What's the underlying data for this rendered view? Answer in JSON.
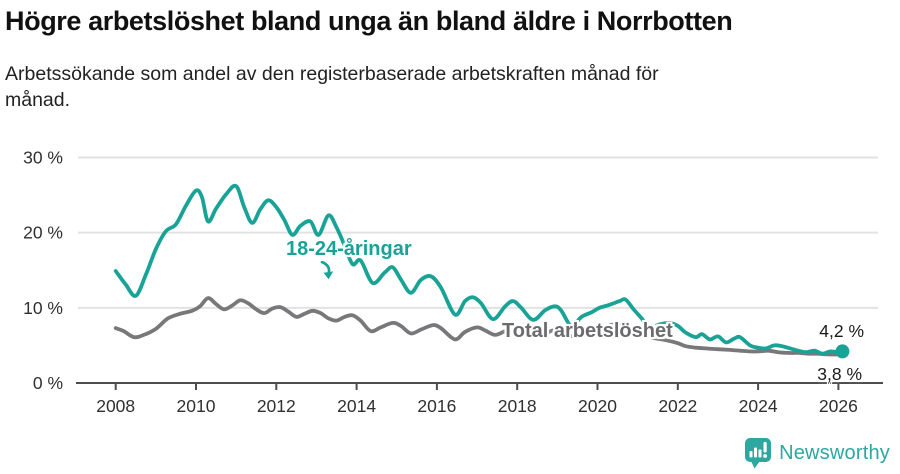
{
  "header": {
    "title": "Högre arbetslöshet bland unga än bland äldre i Norrbotten",
    "subtitle": "Arbetssökande som andel av den registerbaserade arbetskraften månad för\nmånad."
  },
  "annotations": {
    "youth_label": "18-24-åringar",
    "total_label": "Total arbetslöshet",
    "end_value_youth": "4,2 %",
    "end_value_total": "3,8 %"
  },
  "footer": {
    "brand": "Newsworthy"
  },
  "colors": {
    "youth_line": "#18a396",
    "total_line": "#78787b",
    "total_label_text": "#6b6b6e",
    "grid": "#e2e2e2",
    "axis": "#4d4d4d",
    "tick_text": "#303030",
    "brand_teal": "#2da7a0"
  },
  "chart_data": {
    "type": "line",
    "title": "Högre arbetslöshet bland unga än bland äldre i Norrbotten",
    "subtitle": "Arbetssökande som andel av den registerbaserade arbetskraften månad för månad.",
    "xlabel": "",
    "ylabel": "",
    "unit": "%",
    "grid": true,
    "legend_position": "inline-labels",
    "x_axis": {
      "range": [
        2007.9,
        2027.1
      ],
      "tick_values": [
        2008,
        2010,
        2012,
        2014,
        2016,
        2018,
        2020,
        2022,
        2024,
        2026
      ],
      "tick_labels": [
        "2008",
        "2010",
        "2012",
        "2014",
        "2016",
        "2018",
        "2020",
        "2022",
        "2024",
        "2026"
      ]
    },
    "y_axis": {
      "range": [
        0,
        30
      ],
      "tick_values": [
        0,
        10,
        20,
        30
      ],
      "tick_labels": [
        "0 %",
        "10 %",
        "20 %",
        "30 %"
      ]
    },
    "series": [
      {
        "name": "Total arbetslöshet",
        "color": "#78787b",
        "end_label": "3,8 %",
        "end_dot": false,
        "points": [
          [
            2008.0,
            7.3
          ],
          [
            2008.2,
            6.9
          ],
          [
            2008.45,
            6.1
          ],
          [
            2008.7,
            6.4
          ],
          [
            2009.0,
            7.2
          ],
          [
            2009.3,
            8.6
          ],
          [
            2009.6,
            9.2
          ],
          [
            2009.9,
            9.6
          ],
          [
            2010.1,
            10.2
          ],
          [
            2010.3,
            11.3
          ],
          [
            2010.5,
            10.5
          ],
          [
            2010.7,
            9.8
          ],
          [
            2010.9,
            10.3
          ],
          [
            2011.1,
            11.0
          ],
          [
            2011.3,
            10.6
          ],
          [
            2011.5,
            9.8
          ],
          [
            2011.7,
            9.3
          ],
          [
            2011.9,
            9.9
          ],
          [
            2012.1,
            10.1
          ],
          [
            2012.3,
            9.5
          ],
          [
            2012.5,
            8.8
          ],
          [
            2012.7,
            9.2
          ],
          [
            2012.9,
            9.6
          ],
          [
            2013.1,
            9.3
          ],
          [
            2013.3,
            8.6
          ],
          [
            2013.5,
            8.3
          ],
          [
            2013.7,
            8.8
          ],
          [
            2013.9,
            9.0
          ],
          [
            2014.1,
            8.3
          ],
          [
            2014.35,
            6.9
          ],
          [
            2014.6,
            7.4
          ],
          [
            2014.9,
            8.0
          ],
          [
            2015.1,
            7.6
          ],
          [
            2015.35,
            6.6
          ],
          [
            2015.6,
            7.1
          ],
          [
            2015.9,
            7.7
          ],
          [
            2016.1,
            7.3
          ],
          [
            2016.45,
            5.8
          ],
          [
            2016.7,
            6.8
          ],
          [
            2017.0,
            7.4
          ],
          [
            2017.2,
            7.0
          ],
          [
            2017.45,
            6.4
          ],
          [
            2017.7,
            6.9
          ],
          [
            2017.9,
            7.2
          ],
          [
            2018.1,
            6.9
          ],
          [
            2018.4,
            6.2
          ],
          [
            2018.7,
            6.6
          ],
          [
            2018.9,
            7.0
          ],
          [
            2019.1,
            6.8
          ],
          [
            2019.4,
            6.2
          ],
          [
            2019.7,
            6.6
          ],
          [
            2019.9,
            7.0
          ],
          [
            2020.1,
            7.2
          ],
          [
            2020.4,
            7.8
          ],
          [
            2020.6,
            7.5
          ],
          [
            2020.9,
            7.0
          ],
          [
            2021.1,
            6.6
          ],
          [
            2021.4,
            6.0
          ],
          [
            2021.7,
            5.7
          ],
          [
            2022.0,
            5.3
          ],
          [
            2022.2,
            4.9
          ],
          [
            2022.45,
            4.7
          ],
          [
            2022.7,
            4.6
          ],
          [
            2023.0,
            4.5
          ],
          [
            2023.3,
            4.4
          ],
          [
            2023.55,
            4.3
          ],
          [
            2023.8,
            4.2
          ],
          [
            2024.0,
            4.2
          ],
          [
            2024.25,
            4.3
          ],
          [
            2024.5,
            4.1
          ],
          [
            2024.75,
            4.0
          ],
          [
            2025.0,
            4.0
          ],
          [
            2025.25,
            3.9
          ],
          [
            2025.5,
            3.9
          ],
          [
            2025.75,
            3.8
          ],
          [
            2026.0,
            3.8
          ],
          [
            2026.1,
            3.8
          ]
        ]
      },
      {
        "name": "18-24-åringar",
        "color": "#18a396",
        "end_label": "4,2 %",
        "end_dot": true,
        "points": [
          [
            2008.0,
            14.9
          ],
          [
            2008.25,
            13.1
          ],
          [
            2008.5,
            11.6
          ],
          [
            2008.75,
            14.4
          ],
          [
            2009.0,
            17.8
          ],
          [
            2009.25,
            20.2
          ],
          [
            2009.5,
            21.1
          ],
          [
            2009.75,
            23.6
          ],
          [
            2010.0,
            25.6
          ],
          [
            2010.15,
            24.7
          ],
          [
            2010.3,
            21.5
          ],
          [
            2010.5,
            23.2
          ],
          [
            2010.75,
            25.1
          ],
          [
            2011.0,
            26.2
          ],
          [
            2011.2,
            23.4
          ],
          [
            2011.4,
            21.3
          ],
          [
            2011.6,
            23.1
          ],
          [
            2011.8,
            24.3
          ],
          [
            2012.0,
            23.4
          ],
          [
            2012.2,
            21.7
          ],
          [
            2012.4,
            19.7
          ],
          [
            2012.6,
            20.9
          ],
          [
            2012.85,
            21.5
          ],
          [
            2013.05,
            19.7
          ],
          [
            2013.3,
            22.3
          ],
          [
            2013.5,
            20.7
          ],
          [
            2013.7,
            18.3
          ],
          [
            2013.9,
            15.8
          ],
          [
            2014.1,
            16.3
          ],
          [
            2014.4,
            13.3
          ],
          [
            2014.7,
            14.7
          ],
          [
            2014.9,
            15.4
          ],
          [
            2015.1,
            13.8
          ],
          [
            2015.35,
            12.0
          ],
          [
            2015.6,
            13.7
          ],
          [
            2015.85,
            14.2
          ],
          [
            2016.1,
            12.7
          ],
          [
            2016.45,
            9.1
          ],
          [
            2016.7,
            10.9
          ],
          [
            2016.9,
            11.4
          ],
          [
            2017.1,
            10.6
          ],
          [
            2017.4,
            8.5
          ],
          [
            2017.7,
            10.2
          ],
          [
            2017.9,
            10.9
          ],
          [
            2018.1,
            10.0
          ],
          [
            2018.4,
            8.4
          ],
          [
            2018.7,
            9.7
          ],
          [
            2018.95,
            10.2
          ],
          [
            2019.1,
            9.6
          ],
          [
            2019.35,
            7.6
          ],
          [
            2019.6,
            8.8
          ],
          [
            2019.85,
            9.4
          ],
          [
            2020.05,
            10.0
          ],
          [
            2020.3,
            10.4
          ],
          [
            2020.55,
            10.9
          ],
          [
            2020.7,
            11.1
          ],
          [
            2020.9,
            9.8
          ],
          [
            2021.1,
            8.6
          ],
          [
            2021.3,
            7.3
          ],
          [
            2021.55,
            7.8
          ],
          [
            2021.8,
            8.0
          ],
          [
            2022.0,
            7.6
          ],
          [
            2022.2,
            6.7
          ],
          [
            2022.45,
            6.1
          ],
          [
            2022.6,
            6.5
          ],
          [
            2022.8,
            5.8
          ],
          [
            2023.0,
            6.2
          ],
          [
            2023.2,
            5.4
          ],
          [
            2023.4,
            5.9
          ],
          [
            2023.55,
            6.1
          ],
          [
            2023.8,
            5.0
          ],
          [
            2024.0,
            4.7
          ],
          [
            2024.2,
            4.6
          ],
          [
            2024.4,
            5.0
          ],
          [
            2024.6,
            4.9
          ],
          [
            2024.8,
            4.6
          ],
          [
            2025.0,
            4.3
          ],
          [
            2025.2,
            4.1
          ],
          [
            2025.4,
            4.3
          ],
          [
            2025.6,
            3.9
          ],
          [
            2025.8,
            4.2
          ],
          [
            2026.0,
            4.1
          ],
          [
            2026.1,
            4.2
          ]
        ]
      }
    ]
  }
}
